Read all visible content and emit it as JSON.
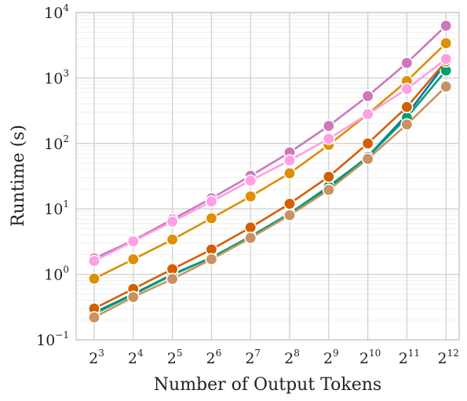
{
  "chart_data": {
    "type": "line",
    "xlabel": "Number of Output Tokens",
    "ylabel": "Runtime (s)",
    "x": [
      3,
      4,
      5,
      6,
      7,
      8,
      9,
      10,
      11,
      12
    ],
    "x_tick_labels": [
      {
        "base": "2",
        "exp": "3"
      },
      {
        "base": "2",
        "exp": "4"
      },
      {
        "base": "2",
        "exp": "5"
      },
      {
        "base": "2",
        "exp": "6"
      },
      {
        "base": "2",
        "exp": "7"
      },
      {
        "base": "2",
        "exp": "8"
      },
      {
        "base": "2",
        "exp": "9"
      },
      {
        "base": "2",
        "exp": "10"
      },
      {
        "base": "2",
        "exp": "11"
      },
      {
        "base": "2",
        "exp": "12"
      }
    ],
    "x_scale": "log2",
    "y_scale": "log10",
    "ylim": [
      0.1,
      10000
    ],
    "y_tick_labels": [
      {
        "base": "10",
        "exp": "−1",
        "value": 0.1
      },
      {
        "base": "10",
        "exp": "0",
        "value": 1
      },
      {
        "base": "10",
        "exp": "1",
        "value": 10
      },
      {
        "base": "10",
        "exp": "2",
        "value": 100
      },
      {
        "base": "10",
        "exp": "3",
        "value": 1000
      },
      {
        "base": "10",
        "exp": "4",
        "value": 10000
      }
    ],
    "grid": true,
    "series": [
      {
        "color": "#0072b2",
        "values": [
          0.26,
          0.5,
          1.0,
          1.8,
          3.7,
          8.5,
          21,
          63,
          275,
          1700
        ]
      },
      {
        "color": "#009e73",
        "values": [
          0.25,
          0.49,
          0.98,
          1.8,
          3.8,
          8.5,
          22,
          62,
          250,
          1300
        ]
      },
      {
        "color": "#d55e00",
        "values": [
          0.3,
          0.6,
          1.2,
          2.4,
          5.2,
          12,
          31,
          100,
          360,
          1800
        ]
      },
      {
        "color": "#de8f05",
        "values": [
          0.86,
          1.7,
          3.4,
          7.2,
          15.5,
          35,
          95,
          280,
          900,
          3400
        ]
      },
      {
        "color": "#cc78bc",
        "values": [
          1.75,
          3.3,
          6.9,
          14.5,
          32,
          73,
          185,
          530,
          1700,
          6300
        ]
      },
      {
        "color": "#ff9fe4",
        "values": [
          1.6,
          3.2,
          6.4,
          13,
          27,
          55,
          118,
          280,
          680,
          1950
        ]
      },
      {
        "color": "#ca9161",
        "values": [
          0.22,
          0.45,
          0.85,
          1.7,
          3.6,
          8.0,
          19.5,
          58,
          195,
          740
        ]
      }
    ]
  }
}
